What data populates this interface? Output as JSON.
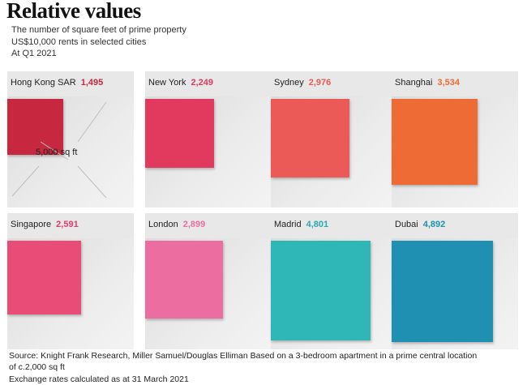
{
  "title": "Relative values",
  "subtitle": [
    "The number of square feet of prime property",
    "US$10,000 rents in selected cities",
    "At Q1 2021"
  ],
  "reference_label": "5,000 sq ft",
  "footer": [
    "Source: Knight Frank Research, Miller Samuel/Douglas Elliman Based on a 3-bedroom apartment in a prime central location",
    "of c.2,000 sq ft",
    "Exchange rates calculated as at 31 March 2021"
  ],
  "chart_data": {
    "type": "area-squares",
    "reference_area_sqft": 5000,
    "series": [
      {
        "city": "Hong Kong SAR",
        "value_label": "1,495",
        "value": 1495,
        "color": "#c8283f"
      },
      {
        "city": "New York",
        "value_label": "2,249",
        "value": 2249,
        "color": "#e23a5f"
      },
      {
        "city": "Sydney",
        "value_label": "2,976",
        "value": 2976,
        "color": "#ec5a58"
      },
      {
        "city": "Shanghai",
        "value_label": "3,534",
        "value": 3534,
        "color": "#ee6b35"
      },
      {
        "city": "Singapore",
        "value_label": "2,591",
        "value": 2591,
        "color": "#e94c76"
      },
      {
        "city": "London",
        "value_label": "2,899",
        "value": 2899,
        "color": "#ec6da0"
      },
      {
        "city": "Madrid",
        "value_label": "4,801",
        "value": 4801,
        "color": "#2fb7b7"
      },
      {
        "city": "Dubai",
        "value_label": "4,892",
        "value": 4892,
        "color": "#1f8fb2"
      }
    ],
    "value_colors": {
      "Hong Kong SAR": "#c8283f",
      "New York": "#e23a5f",
      "Sydney": "#e55a55",
      "Shanghai": "#ee6b35",
      "Singapore": "#e23a6a",
      "London": "#ec6da0",
      "Madrid": "#2aa7b2",
      "Dubai": "#1f8fb2"
    }
  }
}
